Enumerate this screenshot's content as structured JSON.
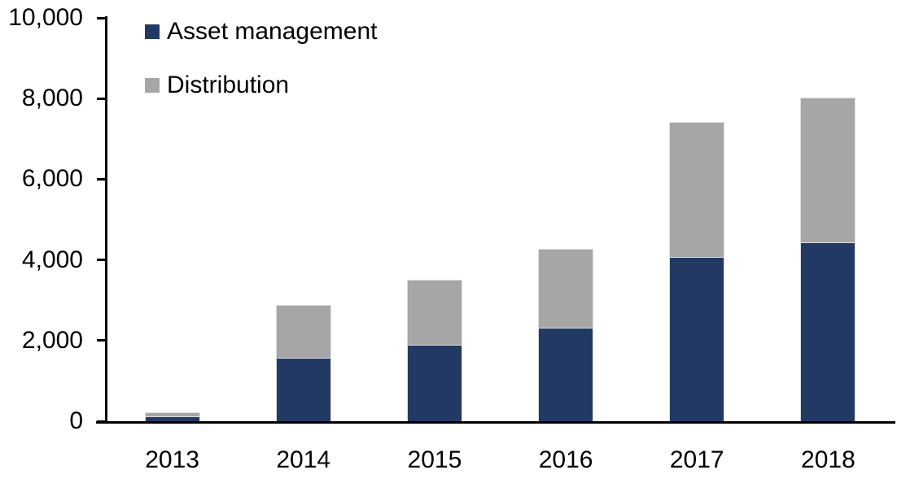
{
  "chart_data": {
    "type": "bar",
    "stacked": true,
    "title": "",
    "xlabel": "",
    "ylabel": "",
    "categories": [
      "2013",
      "2014",
      "2015",
      "2016",
      "2017",
      "2018"
    ],
    "series": [
      {
        "name": "Asset management",
        "color": "#223A63",
        "values": [
          100,
          1550,
          1880,
          2300,
          4050,
          4420
        ]
      },
      {
        "name": "Distribution",
        "color": "#A6A6A6",
        "values": [
          100,
          1310,
          1620,
          1950,
          3350,
          3580
        ]
      }
    ],
    "totals": [
      200,
      2860,
      3500,
      4250,
      7400,
      8000
    ],
    "ylim": [
      0,
      10000
    ],
    "ytick_interval": 2000,
    "ytick_labels": [
      "0",
      "2,000",
      "4,000",
      "6,000",
      "8,000",
      "10,000"
    ],
    "grid": false,
    "legend_position": "top-left",
    "axis_color": "#000000",
    "bar_outline_color": "#DCDFE6"
  }
}
